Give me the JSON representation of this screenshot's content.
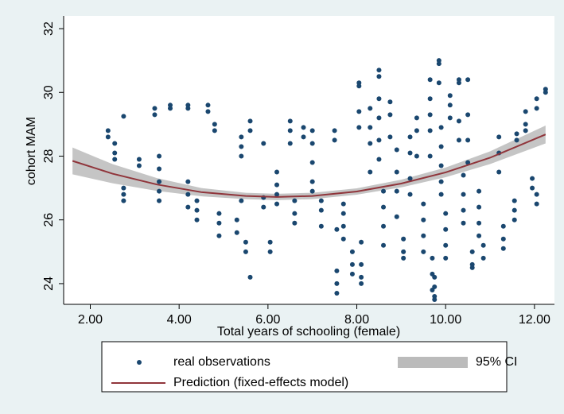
{
  "chart_data": {
    "type": "scatter",
    "xlabel": "Total years of schooling (female)",
    "ylabel": "cohort MAM",
    "xlim": [
      1.4,
      12.45
    ],
    "ylim": [
      23.35,
      32.4
    ],
    "xticks": [
      {
        "value": 2,
        "label": "2.00"
      },
      {
        "value": 4,
        "label": "4.00"
      },
      {
        "value": 6,
        "label": "6.00"
      },
      {
        "value": 8,
        "label": "8.00"
      },
      {
        "value": 10,
        "label": "10.00"
      },
      {
        "value": 12,
        "label": "12.00"
      }
    ],
    "yticks": [
      24,
      26,
      28,
      30,
      32
    ],
    "series": [
      {
        "name": "real observations",
        "type": "scatter",
        "color": "#1a476f",
        "x": [
          2.4,
          2.4,
          2.55,
          2.55,
          2.55,
          2.75,
          2.75,
          2.75,
          2.75,
          3.1,
          3.1,
          3.45,
          3.45,
          3.55,
          3.55,
          3.55,
          3.55,
          3.55,
          3.8,
          3.8,
          4.2,
          4.2,
          4.2,
          4.2,
          4.2,
          4.4,
          4.4,
          4.4,
          4.65,
          4.65,
          4.8,
          4.8,
          4.9,
          4.9,
          4.9,
          5.3,
          5.3,
          5.4,
          5.4,
          5.4,
          5.4,
          5.5,
          5.5,
          5.6,
          5.6,
          5.6,
          5.9,
          5.9,
          5.9,
          6.05,
          6.05,
          6.2,
          6.2,
          6.2,
          6.2,
          6.5,
          6.5,
          6.5,
          6.6,
          6.6,
          6.6,
          6.8,
          6.8,
          7.0,
          7.0,
          7.0,
          7.0,
          7.0,
          7.2,
          7.2,
          7.2,
          7.5,
          7.5,
          7.55,
          7.55,
          7.55,
          7.55,
          7.7,
          7.7,
          7.7,
          7.7,
          7.9,
          7.9,
          7.9,
          8.05,
          8.05,
          8.05,
          8.05,
          8.1,
          8.1,
          8.1,
          8.1,
          8.3,
          8.3,
          8.3,
          8.3,
          8.5,
          8.5,
          8.5,
          8.5,
          8.5,
          8.5,
          8.6,
          8.6,
          8.6,
          8.6,
          8.75,
          8.75,
          8.75,
          8.9,
          8.9,
          8.9,
          8.9,
          9.05,
          9.05,
          9.05,
          9.2,
          9.2,
          9.2,
          9.2,
          9.35,
          9.35,
          9.35,
          9.5,
          9.5,
          9.5,
          9.5,
          9.65,
          9.65,
          9.65,
          9.65,
          9.65,
          9.7,
          9.7,
          9.7,
          9.75,
          9.75,
          9.75,
          9.75,
          9.85,
          9.85,
          9.85,
          9.9,
          9.9,
          9.9,
          9.9,
          9.9,
          10.0,
          10.0,
          10.0,
          10.0,
          10.1,
          10.1,
          10.1,
          10.3,
          10.3,
          10.3,
          10.3,
          10.4,
          10.4,
          10.4,
          10.4,
          10.5,
          10.5,
          10.5,
          10.5,
          10.6,
          10.6,
          10.6,
          10.75,
          10.75,
          10.75,
          10.75,
          10.85,
          10.85,
          11.2,
          11.2,
          11.2,
          11.3,
          11.3,
          11.3,
          11.55,
          11.55,
          11.55,
          11.6,
          11.6,
          11.8,
          11.8,
          11.8,
          11.95,
          11.95,
          12.05,
          12.05,
          12.05,
          12.05,
          12.25,
          12.25
        ],
        "values": [
          28.8,
          28.6,
          28.4,
          28.1,
          27.9,
          29.25,
          27.0,
          26.8,
          26.6,
          27.9,
          27.7,
          29.3,
          29.5,
          28.0,
          27.6,
          27.2,
          26.9,
          26.6,
          29.5,
          29.6,
          29.6,
          29.5,
          27.2,
          26.8,
          26.4,
          26.6,
          26.3,
          26.0,
          29.6,
          29.4,
          29.0,
          28.8,
          26.2,
          25.9,
          25.5,
          26.0,
          25.6,
          28.6,
          28.3,
          28.0,
          26.6,
          25.3,
          25.0,
          29.1,
          28.8,
          24.2,
          28.4,
          26.7,
          26.4,
          25.3,
          25.0,
          27.5,
          27.1,
          26.8,
          26.5,
          29.1,
          28.8,
          28.4,
          26.6,
          26.2,
          25.9,
          28.9,
          28.6,
          28.8,
          28.4,
          27.8,
          27.2,
          26.9,
          26.6,
          26.3,
          25.8,
          28.8,
          28.5,
          24.0,
          23.7,
          24.4,
          25.7,
          26.5,
          26.2,
          25.8,
          25.4,
          25.0,
          24.6,
          24.3,
          30.3,
          30.2,
          29.4,
          28.9,
          24.2,
          24.0,
          24.6,
          25.3,
          29.5,
          28.9,
          28.4,
          27.5,
          30.7,
          30.5,
          29.8,
          29.2,
          28.5,
          27.9,
          26.9,
          26.4,
          25.8,
          25.2,
          29.7,
          29.3,
          28.6,
          28.2,
          27.5,
          26.9,
          26.1,
          25.4,
          25.0,
          24.8,
          28.6,
          28.1,
          27.3,
          26.8,
          29.2,
          28.8,
          28.0,
          26.5,
          26.0,
          25.5,
          25.0,
          30.4,
          29.8,
          29.3,
          28.8,
          28.0,
          24.8,
          24.3,
          23.8,
          23.6,
          23.5,
          23.9,
          24.2,
          31.0,
          30.9,
          30.3,
          28.9,
          28.3,
          27.7,
          27.2,
          26.8,
          26.2,
          25.7,
          25.2,
          24.8,
          29.9,
          29.6,
          29.2,
          30.4,
          30.3,
          29.1,
          28.5,
          27.4,
          26.8,
          26.3,
          25.9,
          30.4,
          29.3,
          28.5,
          27.8,
          24.6,
          24.5,
          25.0,
          26.9,
          26.4,
          25.9,
          25.5,
          25.2,
          24.8,
          28.6,
          28.1,
          27.5,
          25.8,
          25.4,
          25.1,
          26.6,
          26.3,
          26.0,
          28.7,
          28.5,
          29.4,
          29.0,
          28.8,
          27.3,
          27.0,
          29.8,
          29.5,
          26.8,
          26.5,
          30.1,
          30.0
        ]
      },
      {
        "name": "Prediction (fixed-effects model)",
        "type": "line",
        "color": "#90353b",
        "x": [
          1.6,
          2.5,
          3.5,
          4.5,
          5.5,
          6.2,
          7,
          8,
          9,
          10,
          11,
          12.25
        ],
        "values": [
          27.85,
          27.45,
          27.11,
          26.87,
          26.75,
          26.72,
          26.75,
          26.89,
          27.14,
          27.49,
          27.95,
          28.68
        ]
      },
      {
        "name": "95% CI",
        "type": "band",
        "color": "#bbbbbb",
        "x": [
          1.6,
          2.5,
          3.5,
          4.5,
          5.5,
          6.2,
          7,
          8,
          9,
          10,
          11,
          12.25
        ],
        "lower": [
          27.43,
          27.15,
          26.91,
          26.74,
          26.65,
          26.62,
          26.65,
          26.79,
          27.02,
          27.34,
          27.75,
          28.4
        ],
        "upper": [
          28.27,
          27.75,
          27.31,
          27.0,
          26.85,
          26.82,
          26.85,
          26.99,
          27.26,
          27.64,
          28.15,
          28.96
        ]
      }
    ]
  }
}
